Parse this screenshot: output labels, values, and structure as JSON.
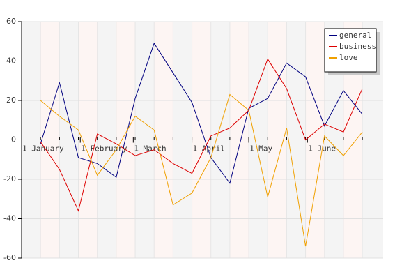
{
  "chart_data": {
    "type": "line",
    "x": [
      10,
      20,
      30,
      40,
      50,
      60,
      70,
      80,
      90,
      100,
      110,
      120,
      130,
      140,
      150,
      160,
      170,
      180
    ],
    "xlim": [
      0,
      191
    ],
    "xticks": [
      {
        "value": 0,
        "label": "1 January"
      },
      {
        "value": 31,
        "label": "1 February"
      },
      {
        "value": 59,
        "label": "1 March"
      },
      {
        "value": 90,
        "label": "1 April"
      },
      {
        "value": 120,
        "label": "1 May"
      },
      {
        "value": 151,
        "label": "1 June"
      }
    ],
    "ylim": [
      -60,
      60
    ],
    "yticks": [
      -60,
      -40,
      -20,
      0,
      20,
      40,
      60
    ],
    "grid": true,
    "legend": "top-right",
    "series": [
      {
        "name": "general",
        "color": "#000080",
        "values": [
          -2,
          29,
          -9,
          -12,
          -19,
          21,
          49,
          34,
          19,
          -9,
          -22,
          16,
          21,
          39,
          32,
          7,
          25,
          13
        ]
      },
      {
        "name": "business",
        "color": "#dd0000",
        "values": [
          -1,
          -15,
          -36,
          3,
          -2,
          -8,
          -5,
          -12,
          -17,
          2,
          6,
          15,
          41,
          26,
          0,
          8,
          4,
          26
        ]
      },
      {
        "name": "love",
        "color": "#f0a000",
        "values": [
          20,
          12,
          5,
          -18,
          -5,
          12,
          5,
          -33,
          -27,
          -9,
          23,
          15,
          -29,
          6,
          -54,
          2,
          -8,
          4
        ]
      }
    ]
  }
}
